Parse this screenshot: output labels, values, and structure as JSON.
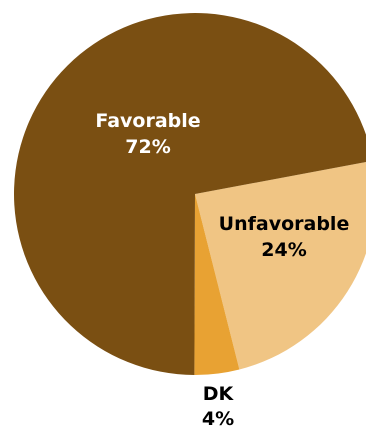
{
  "chart_data": {
    "type": "pie",
    "slices": [
      {
        "label": "Favorable",
        "value": 72,
        "value_label": "72%",
        "color": "#7a4f12",
        "text_color": "#ffffff"
      },
      {
        "label": "Unfavorable",
        "value": 24,
        "value_label": "24%",
        "color": "#f0c584",
        "text_color": "#000000"
      },
      {
        "label": "DK",
        "value": 4,
        "value_label": "4%",
        "color": "#e8a233",
        "text_color": "#000000"
      }
    ]
  }
}
